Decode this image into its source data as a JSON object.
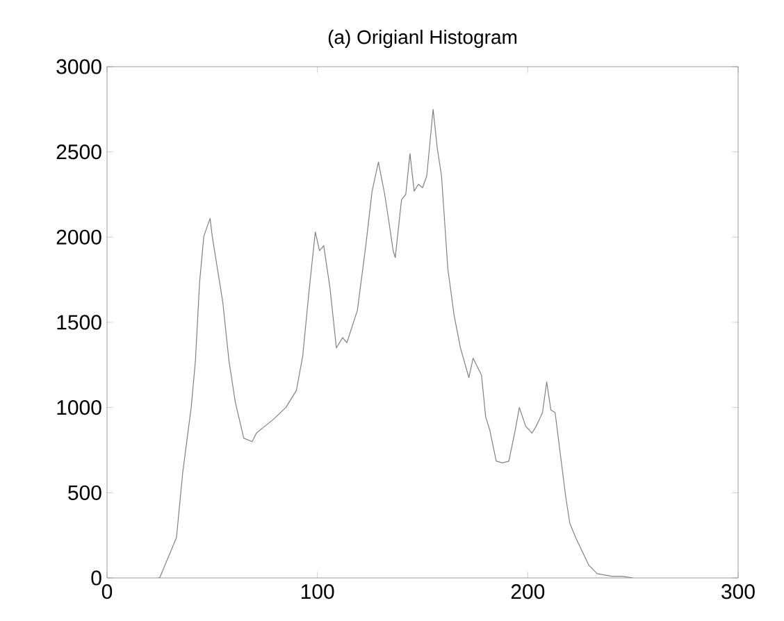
{
  "chart_data": {
    "type": "line",
    "title": "(a) Origianl Histogram",
    "x": [
      24,
      25,
      33,
      36,
      40,
      42,
      44,
      46,
      49,
      50,
      55,
      58,
      61,
      65,
      69,
      71,
      75,
      79,
      85,
      90,
      93,
      96,
      99,
      101,
      103,
      106,
      109,
      112,
      114,
      119,
      123,
      126,
      129,
      132,
      134,
      136,
      137,
      140,
      142,
      144,
      146,
      148,
      150,
      152,
      155,
      157,
      159,
      162,
      165,
      168,
      172,
      174,
      178,
      180,
      182,
      185,
      188,
      191,
      194,
      196,
      199,
      202,
      204,
      207,
      209,
      211,
      213,
      216,
      218,
      220,
      223,
      229,
      233,
      240,
      245,
      250
    ],
    "series": [
      {
        "color": "#808080",
        "values": [
          0,
          0,
          236,
          620,
          1000,
          1270,
          1735,
          2005,
          2110,
          2005,
          1620,
          1270,
          1030,
          820,
          800,
          850,
          890,
          930,
          1000,
          1100,
          1300,
          1680,
          2030,
          1920,
          1950,
          1700,
          1350,
          1410,
          1380,
          1570,
          1950,
          2270,
          2440,
          2250,
          2090,
          1920,
          1880,
          2220,
          2250,
          2490,
          2270,
          2310,
          2290,
          2360,
          2750,
          2520,
          2360,
          1815,
          1540,
          1350,
          1175,
          1290,
          1190,
          945,
          865,
          685,
          675,
          685,
          865,
          1000,
          890,
          850,
          890,
          970,
          1150,
          985,
          970,
          675,
          480,
          320,
          230,
          75,
          25,
          10,
          10,
          0
        ]
      }
    ],
    "xlim": [
      0,
      300
    ],
    "ylim": [
      0,
      3000
    ],
    "xticks": [
      0,
      100,
      200,
      300
    ],
    "yticks": [
      0,
      500,
      1000,
      1500,
      2000,
      2500,
      3000
    ],
    "grid": false,
    "marker": "none",
    "line_style": "solid"
  }
}
